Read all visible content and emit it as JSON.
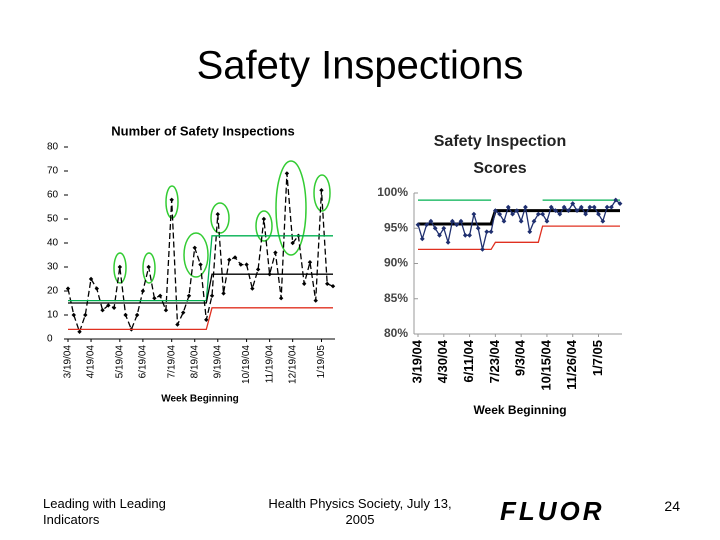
{
  "title": "Safety Inspections",
  "chart_data": [
    {
      "type": "line",
      "title": "Number of Safety Inspections",
      "x_label": "Week Beginning",
      "categories": [
        "3/19/04",
        null,
        null,
        null,
        "4/19/04",
        null,
        null,
        null,
        null,
        "5/19/04",
        null,
        null,
        null,
        "6/19/04",
        null,
        null,
        null,
        null,
        "7/19/04",
        null,
        null,
        null,
        "8/19/04",
        null,
        null,
        null,
        "9/19/04",
        null,
        null,
        null,
        null,
        "10/19/04",
        null,
        null,
        null,
        "11/19/04",
        null,
        null,
        null,
        "12/19/04",
        null,
        null,
        null,
        null,
        "1/19/05",
        null,
        null
      ],
      "series": [
        {
          "color": "#000000",
          "line_style": "dashed",
          "markers": true,
          "values": [
            21,
            10,
            3,
            10,
            25,
            21,
            12,
            14,
            13,
            30,
            10,
            4,
            10,
            20,
            30,
            17,
            18,
            12,
            58,
            6,
            11,
            18,
            38,
            31,
            8,
            18,
            52,
            19,
            33,
            34,
            31,
            31,
            21,
            29,
            50,
            27,
            36,
            17,
            69,
            40,
            43,
            23,
            32,
            16,
            62,
            23,
            22
          ]
        },
        {
          "color": "#00b050",
          "values": [
            16,
            16,
            16,
            16,
            16,
            16,
            16,
            16,
            16,
            16,
            16,
            16,
            16,
            16,
            16,
            16,
            16,
            16,
            16,
            16,
            16,
            16,
            16,
            16,
            16,
            43,
            43,
            43,
            43,
            43,
            43,
            43,
            43,
            43,
            43,
            43,
            43,
            43,
            43,
            43,
            43,
            43,
            43,
            43,
            43,
            43,
            43
          ]
        },
        {
          "color": "#000000",
          "values": [
            15,
            15,
            15,
            15,
            15,
            15,
            15,
            15,
            15,
            15,
            15,
            15,
            15,
            15,
            15,
            15,
            15,
            15,
            15,
            15,
            15,
            15,
            15,
            15,
            15,
            27,
            27,
            27,
            27,
            27,
            27,
            27,
            27,
            27,
            27,
            27,
            27,
            27,
            27,
            27,
            27,
            27,
            27,
            27,
            27,
            27,
            27
          ]
        },
        {
          "color": "#e03020",
          "values": [
            4,
            4,
            4,
            4,
            4,
            4,
            4,
            4,
            4,
            4,
            4,
            4,
            4,
            4,
            4,
            4,
            4,
            4,
            4,
            4,
            4,
            4,
            4,
            4,
            4,
            13,
            13,
            13,
            13,
            13,
            13,
            13,
            13,
            13,
            13,
            13,
            13,
            13,
            13,
            13,
            13,
            13,
            13,
            13,
            13,
            13,
            13
          ]
        }
      ],
      "ylim": [
        0,
        80
      ],
      "yticks": [
        0,
        10,
        20,
        30,
        40,
        50,
        60,
        70,
        80
      ]
    },
    {
      "type": "line",
      "title": "Safety Inspection Scores",
      "x_label": "Week Beginning",
      "categories": [
        "3/19/04",
        null,
        null,
        null,
        null,
        null,
        "4/30/04",
        null,
        null,
        null,
        null,
        null,
        "6/11/04",
        null,
        null,
        null,
        null,
        null,
        "7/23/04",
        null,
        null,
        null,
        null,
        null,
        "9/3/04",
        null,
        null,
        null,
        null,
        null,
        "10/15/04",
        null,
        null,
        null,
        null,
        null,
        "11/26/04",
        null,
        null,
        null,
        null,
        null,
        "1/7/05",
        null,
        null,
        null,
        null,
        null
      ],
      "series": [
        {
          "color": "#00b050",
          "values": [
            99,
            99,
            99,
            99,
            99,
            99,
            99,
            99,
            99,
            99,
            99,
            99,
            99,
            99,
            99,
            99,
            99,
            99,
            null,
            null,
            null,
            null,
            null,
            null,
            null,
            null,
            null,
            null,
            null,
            99,
            99,
            99,
            99,
            99,
            99,
            99,
            99,
            99,
            99,
            99,
            99,
            99,
            99,
            99,
            99,
            99,
            99,
            99
          ]
        },
        {
          "color": "#000000",
          "width": 3,
          "values": [
            95.6,
            95.6,
            95.6,
            95.6,
            95.6,
            95.6,
            95.6,
            95.6,
            95.6,
            95.6,
            95.6,
            95.6,
            95.6,
            95.6,
            95.6,
            95.6,
            95.6,
            95.6,
            97.5,
            97.5,
            97.5,
            97.5,
            97.5,
            97.5,
            97.5,
            97.5,
            97.5,
            97.5,
            97.5,
            97.5,
            97.5,
            97.5,
            97.5,
            97.5,
            97.5,
            97.5,
            97.5,
            97.5,
            97.5,
            97.5,
            97.5,
            97.5,
            97.5,
            97.5,
            97.5,
            97.5,
            97.5,
            97.5
          ]
        },
        {
          "color": "#e03020",
          "values": [
            92,
            92,
            92,
            92,
            92,
            92,
            92,
            92,
            92,
            92,
            92,
            92,
            92,
            92,
            92,
            92,
            92,
            92,
            93,
            93,
            93,
            93,
            93,
            93,
            93,
            93,
            93,
            93,
            93,
            95.3,
            95.3,
            95.3,
            95.3,
            95.3,
            95.3,
            95.3,
            95.3,
            95.3,
            95.3,
            95.3,
            95.3,
            95.3,
            95.3,
            95.3,
            95.3,
            95.3,
            95.3,
            95.3
          ]
        },
        {
          "color": "#1f2f6f",
          "markers": true,
          "values": [
            95.5,
            93.5,
            95.5,
            96,
            95,
            94,
            95,
            93,
            96,
            95.5,
            96,
            94,
            94,
            97,
            95,
            92,
            94.5,
            94.5,
            97.5,
            97,
            96,
            98,
            97,
            97.5,
            96,
            98,
            94.5,
            96,
            97,
            97,
            96,
            98,
            97.5,
            97,
            98,
            97.5,
            98.5,
            97.5,
            98,
            97,
            98,
            98,
            97,
            96,
            98,
            98,
            99,
            98.5
          ]
        }
      ],
      "ylim": [
        80,
        100
      ],
      "yticks": [
        {
          "value": 80,
          "label": "80%"
        },
        {
          "value": 85,
          "label": "85%"
        },
        {
          "value": 90,
          "label": "90%"
        },
        {
          "value": 95,
          "label": "95%"
        },
        {
          "value": 100,
          "label": "100%"
        }
      ]
    }
  ],
  "footer": {
    "left": "Leading with Leading Indicators",
    "center": "Health Physics Society, July 13, 2005",
    "logo": "FLUOR",
    "page_number": "24"
  }
}
